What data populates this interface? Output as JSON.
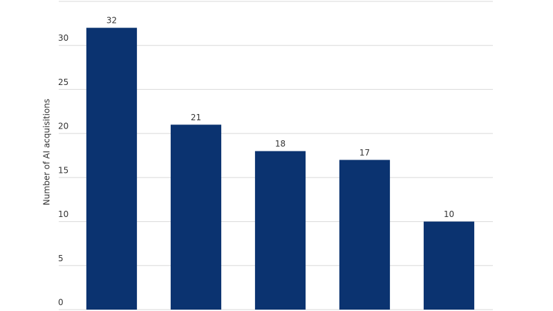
{
  "chart_data": {
    "type": "bar",
    "y_label": "Number of AI acquisitions",
    "categories": [
      null,
      null,
      null,
      null,
      null
    ],
    "values": [
      32,
      21,
      18,
      17,
      10
    ],
    "color": "#0b3370",
    "ylim": [
      0,
      35
    ],
    "yticks": [
      0,
      5,
      10,
      15,
      20,
      25,
      30
    ],
    "grid": true
  }
}
